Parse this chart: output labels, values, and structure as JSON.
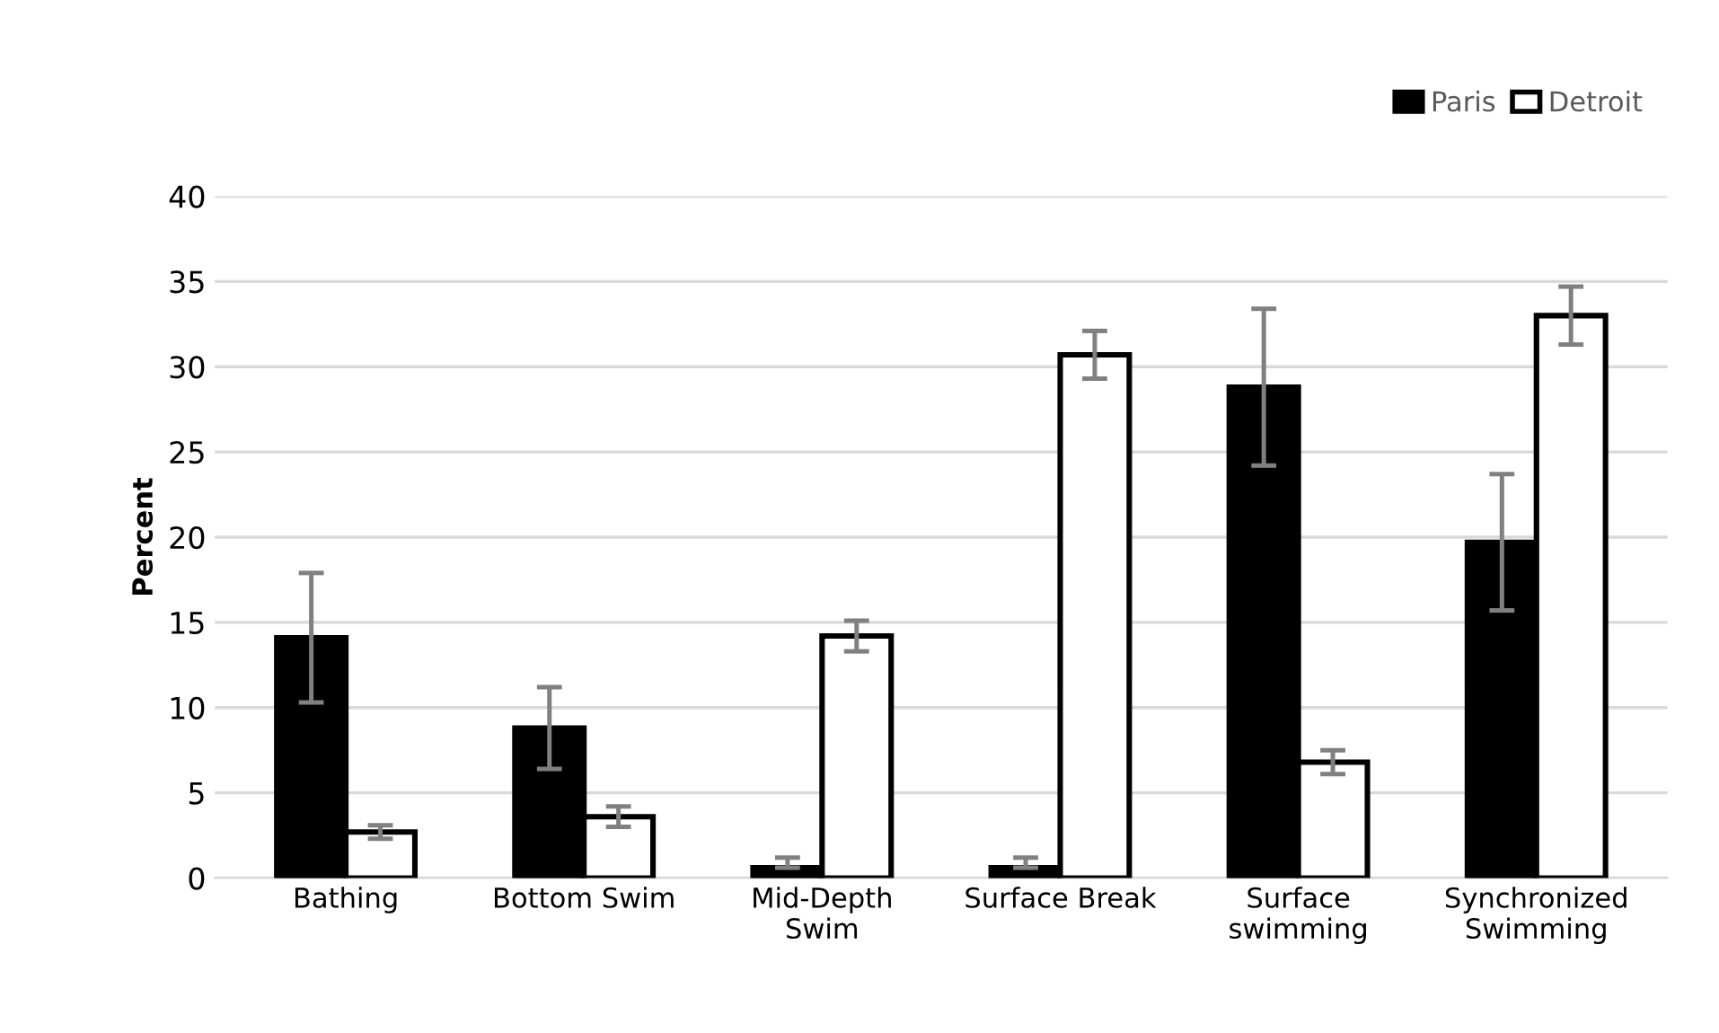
{
  "chart_data": {
    "type": "bar",
    "ylabel": "Percent",
    "categories": [
      "Bathing",
      "Bottom Swim",
      "Mid-Depth\nSwim",
      "Surface Break",
      "Surface\nswimming",
      "Synchronized\nSwimming"
    ],
    "series": [
      {
        "name": "Paris",
        "color": "#000000",
        "values": [
          14.1,
          8.8,
          0.6,
          0.6,
          28.8,
          19.7
        ],
        "errors": [
          3.8,
          2.4,
          [
            0.6,
            1.2
          ],
          [
            0.6,
            1.2
          ],
          4.6,
          4.0
        ]
      },
      {
        "name": "Detroit",
        "color": "#ffffff",
        "values": [
          2.7,
          3.6,
          14.2,
          30.7,
          6.8,
          33.0
        ],
        "errors": [
          0.4,
          0.6,
          0.9,
          1.4,
          0.7,
          1.7
        ]
      }
    ],
    "ylim": [
      0,
      40
    ],
    "yticks": [
      0,
      5,
      10,
      15,
      20,
      25,
      30,
      35,
      40
    ],
    "grid": "y",
    "legend": "top right"
  }
}
